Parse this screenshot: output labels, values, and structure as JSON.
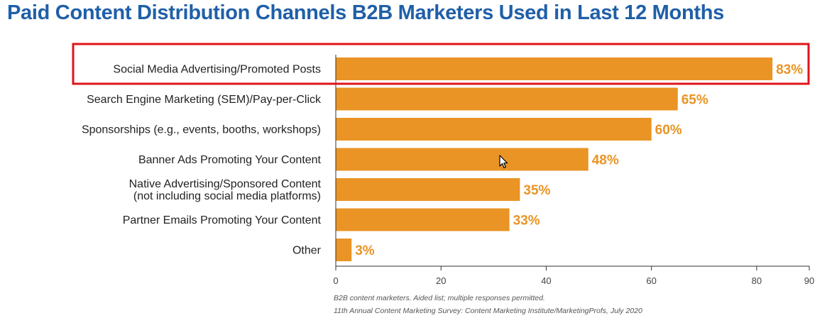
{
  "chart_data": {
    "type": "bar",
    "orientation": "horizontal",
    "title": "Paid Content Distribution Channels B2B Marketers Used in Last 12 Months",
    "categories": [
      "Social Media Advertising/Promoted Posts",
      "Search Engine Marketing (SEM)/Pay-per-Click",
      "Sponsorships (e.g., events, booths, workshops)",
      "Banner Ads Promoting Your Content",
      "Native Advertising/Sponsored Content\n(not including social media platforms)",
      "Partner Emails Promoting Your Content",
      "Other"
    ],
    "values": [
      83,
      65,
      60,
      48,
      35,
      33,
      3
    ],
    "value_labels": [
      "83%",
      "65%",
      "60%",
      "48%",
      "35%",
      "33%",
      "3%"
    ],
    "xlim": [
      0,
      90
    ],
    "xticks": [
      "0",
      "20",
      "40",
      "60",
      "80",
      "90"
    ],
    "xtick_values": [
      0,
      20,
      40,
      60,
      80,
      90
    ],
    "xlabel": "",
    "ylabel": "",
    "grid": false,
    "legend": "none",
    "highlighted_category_index": 0,
    "colors": {
      "bar": "#e99424",
      "value_label": "#e99424",
      "title": "#1f5fa8",
      "highlight_box": "#e0141b",
      "axis": "#333333"
    }
  },
  "notes": [
    "B2B content marketers. Aided list; multiple responses permitted.",
    "11th Annual Content Marketing Survey: Content Marketing Institute/MarketingProfs, July 2020"
  ],
  "cursor": "mouse-pointer-icon"
}
